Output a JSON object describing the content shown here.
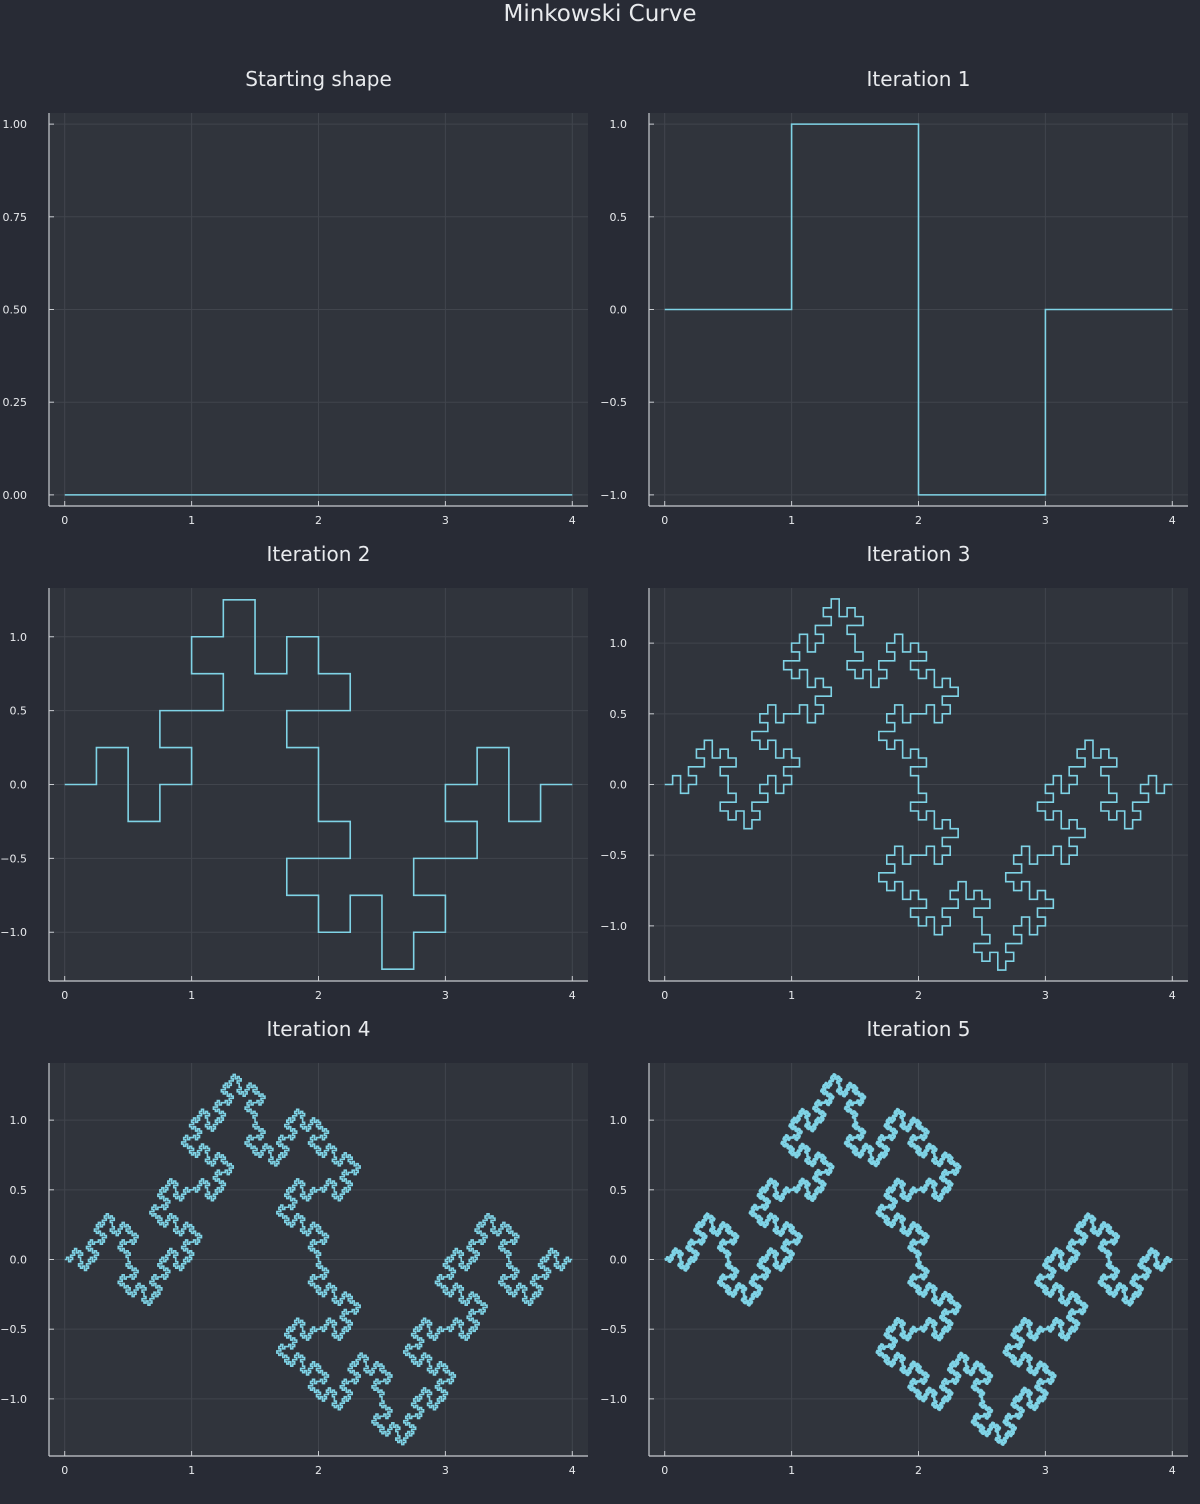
{
  "figure": {
    "title": "Minkowski Curve"
  },
  "colors": {
    "background": "#282b35",
    "plot_background": "#30343c",
    "grid": "#41454d",
    "axis": "#c8cbd0",
    "text": "#e8eaed",
    "curve": "#7fd3e6"
  },
  "chart_data": [
    {
      "type": "line",
      "title": "Starting shape",
      "iterations": 0,
      "xlim": [
        0,
        4
      ],
      "ylim": [
        -0.03,
        1.03
      ],
      "xticks": [
        0,
        1,
        2,
        3,
        4
      ],
      "yticks": [
        0,
        0.25,
        0.5,
        0.75,
        1.0
      ],
      "xtick_labels": [
        "0",
        "1",
        "2",
        "3",
        "4"
      ],
      "ytick_labels": [
        "0.00",
        "0.25",
        "0.50",
        "0.75",
        "1.00"
      ],
      "xlabel": "",
      "ylabel": "",
      "grid": true,
      "legend": "none",
      "series": [
        {
          "x": [
            0,
            4
          ],
          "y": [
            0,
            0
          ]
        }
      ]
    },
    {
      "type": "line",
      "title": "Iteration 1",
      "iterations": 1,
      "xlim": [
        0,
        4
      ],
      "ylim": [
        -1.06,
        1.06
      ],
      "xticks": [
        0,
        1,
        2,
        3,
        4
      ],
      "yticks": [
        -1.0,
        -0.5,
        0.0,
        0.5,
        1.0
      ],
      "xtick_labels": [
        "0",
        "1",
        "2",
        "3",
        "4"
      ],
      "ytick_labels": [
        "−1.0",
        "−0.5",
        "0.0",
        "0.5",
        "1.0"
      ],
      "xlabel": "",
      "ylabel": "",
      "grid": true,
      "legend": "none",
      "series": [
        {
          "x": [
            0,
            1,
            1,
            2,
            2,
            3,
            3,
            4
          ],
          "y": [
            0,
            0,
            1,
            1,
            -1,
            -1,
            0,
            0
          ]
        }
      ]
    },
    {
      "type": "line",
      "title": "Iteration 2",
      "iterations": 2,
      "xlim": [
        0,
        4
      ],
      "ylim": [
        -1.33,
        1.33
      ],
      "xticks": [
        0,
        1,
        2,
        3,
        4
      ],
      "yticks": [
        -1.0,
        -0.5,
        0.0,
        0.5,
        1.0
      ],
      "xtick_labels": [
        "0",
        "1",
        "2",
        "3",
        "4"
      ],
      "ytick_labels": [
        "−1.0",
        "−0.5",
        "0.0",
        "0.5",
        "1.0"
      ],
      "xlabel": "",
      "ylabel": "",
      "grid": true,
      "legend": "none",
      "series": [
        {
          "generator": "minkowski",
          "x_start": 0,
          "x_end": 4,
          "iterations": 2
        }
      ]
    },
    {
      "type": "line",
      "title": "Iteration 3",
      "iterations": 3,
      "xlim": [
        0,
        4
      ],
      "ylim": [
        -1.39,
        1.39
      ],
      "xticks": [
        0,
        1,
        2,
        3,
        4
      ],
      "yticks": [
        -1.0,
        -0.5,
        0.0,
        0.5,
        1.0
      ],
      "xtick_labels": [
        "0",
        "1",
        "2",
        "3",
        "4"
      ],
      "ytick_labels": [
        "−1.0",
        "−0.5",
        "0.0",
        "0.5",
        "1.0"
      ],
      "xlabel": "",
      "ylabel": "",
      "grid": true,
      "legend": "none",
      "series": [
        {
          "generator": "minkowski",
          "x_start": 0,
          "x_end": 4,
          "iterations": 3
        }
      ]
    },
    {
      "type": "line",
      "title": "Iteration 4",
      "iterations": 4,
      "xlim": [
        0,
        4
      ],
      "ylim": [
        -1.41,
        1.41
      ],
      "xticks": [
        0,
        1,
        2,
        3,
        4
      ],
      "yticks": [
        -1.0,
        -0.5,
        0.0,
        0.5,
        1.0
      ],
      "xtick_labels": [
        "0",
        "1",
        "2",
        "3",
        "4"
      ],
      "ytick_labels": [
        "−1.0",
        "−0.5",
        "0.0",
        "0.5",
        "1.0"
      ],
      "xlabel": "",
      "ylabel": "",
      "grid": true,
      "legend": "none",
      "series": [
        {
          "generator": "minkowski",
          "x_start": 0,
          "x_end": 4,
          "iterations": 4
        }
      ]
    },
    {
      "type": "line",
      "title": "Iteration 5",
      "iterations": 5,
      "xlim": [
        0,
        4
      ],
      "ylim": [
        -1.41,
        1.41
      ],
      "xticks": [
        0,
        1,
        2,
        3,
        4
      ],
      "yticks": [
        -1.0,
        -0.5,
        0.0,
        0.5,
        1.0
      ],
      "xtick_labels": [
        "0",
        "1",
        "2",
        "3",
        "4"
      ],
      "ytick_labels": [
        "−1.0",
        "−0.5",
        "0.0",
        "0.5",
        "1.0"
      ],
      "xlabel": "",
      "ylabel": "",
      "grid": true,
      "legend": "none",
      "series": [
        {
          "generator": "minkowski",
          "x_start": 0,
          "x_end": 4,
          "iterations": 5
        }
      ]
    }
  ]
}
